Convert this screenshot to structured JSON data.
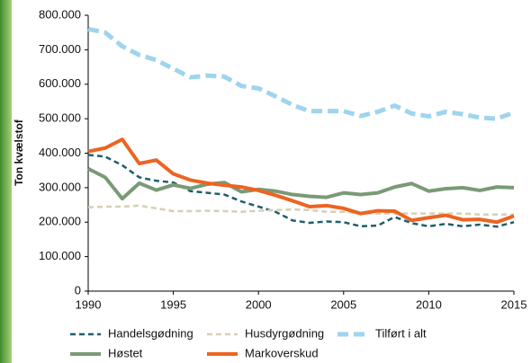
{
  "chart_data": {
    "type": "line",
    "y_label": "Ton kvælstof",
    "x": [
      1990,
      1991,
      1992,
      1993,
      1994,
      1995,
      1996,
      1997,
      1998,
      1999,
      2000,
      2001,
      2002,
      2003,
      2004,
      2005,
      2006,
      2007,
      2008,
      2009,
      2010,
      2011,
      2012,
      2013,
      2014,
      2015
    ],
    "xlim": [
      1990,
      2015
    ],
    "xticks": [
      1990,
      1995,
      2000,
      2005,
      2010,
      2015
    ],
    "ylim": [
      0,
      800000
    ],
    "yticks": [
      {
        "value": 0,
        "label": "0"
      },
      {
        "value": 100000,
        "label": "100.000"
      },
      {
        "value": 200000,
        "label": "200.000"
      },
      {
        "value": 300000,
        "label": "300.000"
      },
      {
        "value": 400000,
        "label": "400.000"
      },
      {
        "value": 500000,
        "label": "500.000"
      },
      {
        "value": 600000,
        "label": "600.000"
      },
      {
        "value": 700000,
        "label": "700.000"
      },
      {
        "value": 800000,
        "label": "800.000"
      }
    ],
    "grid": false,
    "legend": "bottom",
    "series": [
      {
        "name": "Handelsgødning",
        "color": "#1f5f6b",
        "dash": "6 4",
        "width": 2.5,
        "values": [
          395000,
          390000,
          365000,
          330000,
          320000,
          315000,
          290000,
          285000,
          280000,
          260000,
          245000,
          230000,
          205000,
          198000,
          202000,
          200000,
          188000,
          190000,
          215000,
          197000,
          188000,
          195000,
          188000,
          193000,
          187000,
          200000
        ]
      },
      {
        "name": "Husdyrgødning",
        "color": "#d6cfb5",
        "dash": "6 4",
        "width": 2.5,
        "values": [
          243000,
          245000,
          245000,
          248000,
          240000,
          232000,
          232000,
          233000,
          232000,
          230000,
          233000,
          235000,
          237000,
          235000,
          230000,
          230000,
          225000,
          225000,
          225000,
          225000,
          225000,
          225000,
          225000,
          222000,
          222000,
          222000
        ]
      },
      {
        "name": "Tilført i alt",
        "color": "#9fd4ee",
        "dash": "12 6",
        "width": 5,
        "values": [
          760000,
          750000,
          710000,
          685000,
          670000,
          645000,
          620000,
          625000,
          622000,
          595000,
          588000,
          565000,
          540000,
          522000,
          522000,
          522000,
          508000,
          520000,
          538000,
          515000,
          507000,
          520000,
          513000,
          503000,
          500000,
          518000
        ]
      },
      {
        "name": "Høstet",
        "color": "#7a9a76",
        "dash": "",
        "width": 4,
        "values": [
          355000,
          330000,
          268000,
          313000,
          293000,
          308000,
          298000,
          310000,
          315000,
          288000,
          295000,
          290000,
          280000,
          275000,
          272000,
          285000,
          280000,
          285000,
          302000,
          312000,
          290000,
          297000,
          300000,
          292000,
          302000,
          300000
        ]
      },
      {
        "name": "Markoverskud",
        "color": "#ec6422",
        "dash": "",
        "width": 4,
        "values": [
          405000,
          415000,
          440000,
          370000,
          380000,
          340000,
          322000,
          313000,
          307000,
          302000,
          292000,
          278000,
          262000,
          245000,
          248000,
          240000,
          225000,
          233000,
          232000,
          205000,
          213000,
          220000,
          207000,
          208000,
          200000,
          218000
        ]
      }
    ]
  }
}
